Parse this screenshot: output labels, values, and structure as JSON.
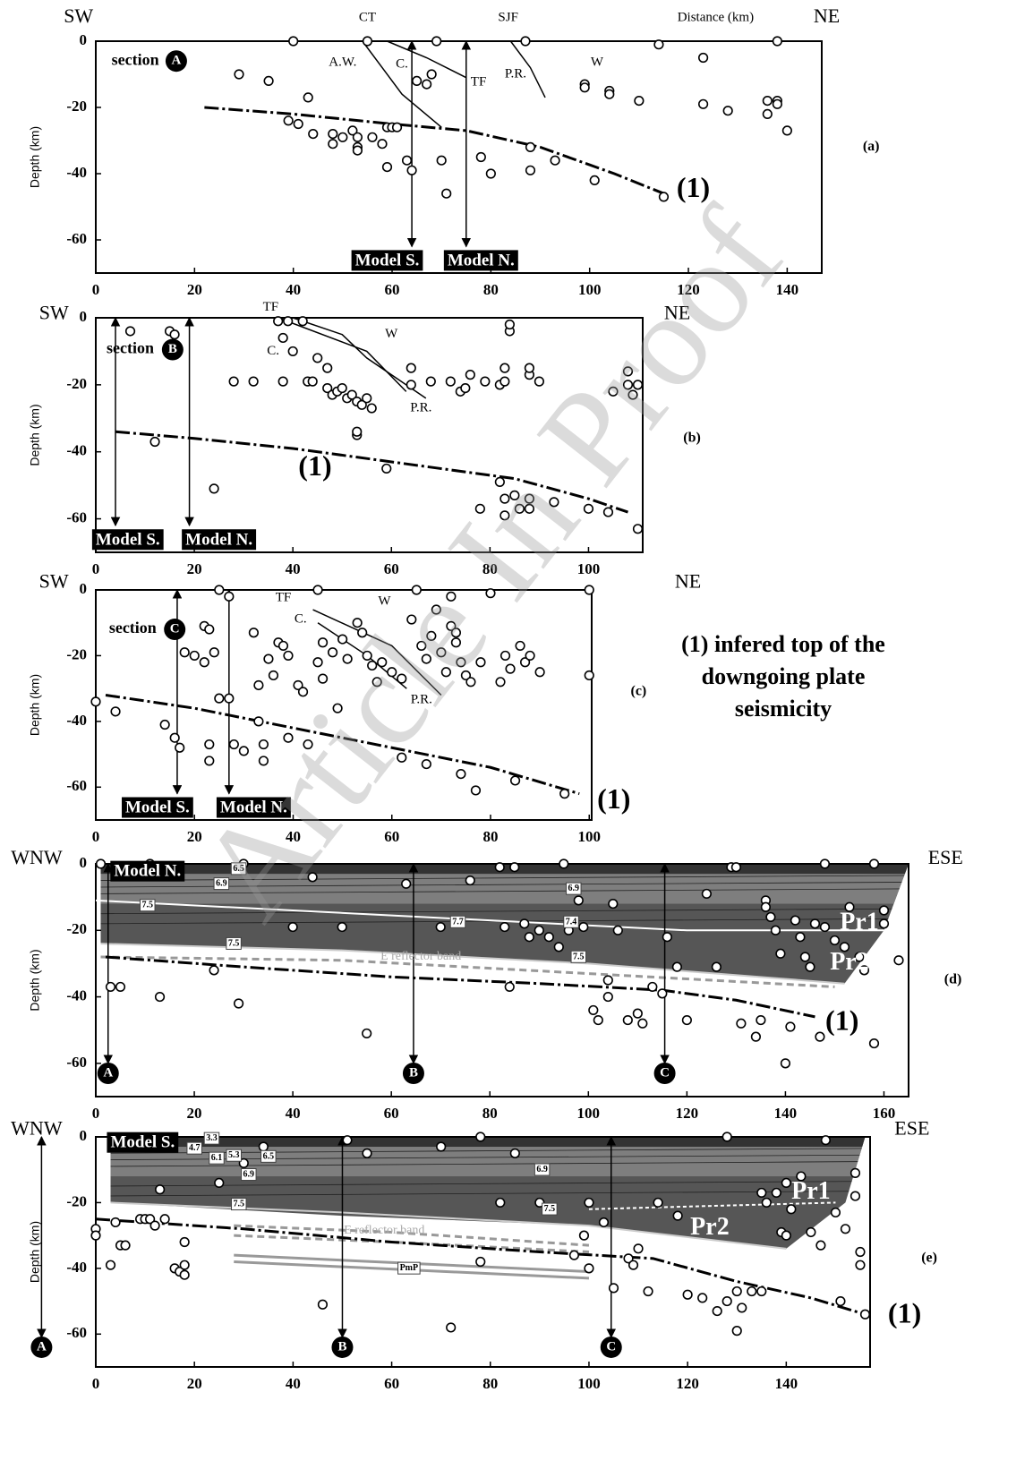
{
  "watermark": "Article In Proof",
  "note": [
    "(1) infered top of the",
    "downgoing plate",
    "seismicity"
  ],
  "chart_data": [
    {
      "type": "scatter",
      "ylabel": "Depth (km)",
      "xlim": [
        0,
        147
      ],
      "ylim": [
        -70,
        0
      ],
      "xticks": [
        0,
        20,
        40,
        60,
        80,
        100,
        120,
        140
      ],
      "yticks": [
        0,
        -20,
        -40,
        -60
      ],
      "x": [
        40,
        55,
        69,
        87,
        114,
        138,
        29,
        35,
        43,
        65,
        67,
        68,
        99,
        99,
        104,
        104,
        110,
        123,
        123,
        128,
        136,
        136,
        138,
        138,
        140,
        39,
        41,
        44,
        48,
        48,
        50,
        52,
        53,
        53,
        53,
        56,
        58,
        59,
        60,
        61,
        59,
        63,
        64,
        70,
        71,
        78,
        80,
        88,
        88,
        93,
        101,
        115
      ],
      "y": [
        0,
        0,
        0,
        0,
        -1,
        0,
        -10,
        -12,
        -17,
        -12,
        -13,
        -10,
        -13,
        -14,
        -15,
        -16,
        -18,
        -5,
        -19,
        -21,
        -18,
        -22,
        -18,
        -19,
        -27,
        -24,
        -25,
        -28,
        -28,
        -31,
        -29,
        -27,
        -29,
        -32,
        -33,
        -29,
        -31,
        -26,
        -26,
        -26,
        -38,
        -36,
        -39,
        -36,
        -46,
        -35,
        -40,
        -32,
        -39,
        -36,
        -42,
        -47
      ],
      "plate_line": {
        "x": [
          22,
          40,
          60,
          75,
          90,
          105,
          115
        ],
        "y": [
          -20,
          -22,
          -25,
          -27,
          -32,
          -40,
          -46
        ]
      },
      "annotations": [
        "SW",
        "NE",
        "CT",
        "SJF",
        "Distance (km)",
        "A.W.",
        "C.",
        "TF",
        "P.R.",
        "W",
        "section",
        "A",
        "Model S.",
        "Model N.",
        "(1)",
        "(a)"
      ]
    },
    {
      "type": "scatter",
      "ylabel": "Depth (km)",
      "xlim": [
        0,
        111
      ],
      "ylim": [
        -70,
        0
      ],
      "xticks": [
        0,
        20,
        40,
        60,
        80,
        100
      ],
      "yticks": [
        0,
        -20,
        -40,
        -60
      ],
      "x": [
        7,
        15,
        16,
        12,
        24,
        28,
        32,
        37,
        39,
        42,
        38,
        40,
        45,
        47,
        38,
        43,
        44,
        47,
        48,
        49,
        50,
        51,
        52,
        53,
        54,
        55,
        56,
        53,
        53,
        59,
        64,
        64,
        68,
        72,
        74,
        75,
        76,
        79,
        82,
        83,
        83,
        84,
        84,
        88,
        88,
        90,
        82,
        83,
        85,
        86,
        88,
        88,
        93,
        100,
        104,
        105,
        108,
        108,
        109,
        110,
        110,
        78,
        83
      ],
      "y": [
        -4,
        -4,
        -5,
        -37,
        -51,
        -19,
        -19,
        -1,
        -1,
        -1,
        -6,
        -10,
        -12,
        -15,
        -19,
        -19,
        -19,
        -21,
        -23,
        -22,
        -21,
        -24,
        -23,
        -25,
        -26,
        -24,
        -27,
        -35,
        -34,
        -45,
        -20,
        -15,
        -19,
        -19,
        -22,
        -21,
        -17,
        -19,
        -20,
        -15,
        -19,
        -4,
        -2,
        -17,
        -15,
        -19,
        -49,
        -54,
        -53,
        -57,
        -54,
        -57,
        -55,
        -57,
        -58,
        -22,
        -16,
        -20,
        -23,
        -20,
        -63,
        -57,
        -59
      ],
      "plate_line": {
        "x": [
          4,
          20,
          40,
          55,
          70,
          85,
          100,
          108
        ],
        "y": [
          -34,
          -36,
          -39,
          -42,
          -45,
          -48,
          -54,
          -58
        ]
      },
      "annotations": [
        "SW",
        "NE",
        "TF",
        "W",
        "C.",
        "P.R.",
        "section",
        "B",
        "(1)",
        "(b)",
        "Model S.",
        "Model N."
      ]
    },
    {
      "type": "scatter",
      "ylabel": "Depth (km)",
      "xlim": [
        0,
        100.5
      ],
      "ylim": [
        -70,
        0
      ],
      "xticks": [
        0,
        20,
        40,
        60,
        80,
        100
      ],
      "yticks": [
        0,
        -20,
        -40,
        -60
      ],
      "x": [
        0,
        4,
        14,
        16,
        17,
        18,
        20,
        22,
        23,
        22,
        24,
        25,
        23,
        23,
        25,
        27,
        27,
        28,
        30,
        32,
        33,
        34,
        34,
        33,
        35,
        36,
        37,
        38,
        39,
        39,
        41,
        42,
        43,
        45,
        45,
        46,
        46,
        48,
        49,
        50,
        51,
        53,
        54,
        55,
        56,
        57,
        58,
        60,
        62,
        62,
        64,
        66,
        67,
        67,
        68,
        69,
        70,
        71,
        72,
        73,
        73,
        74,
        74,
        75,
        76,
        77,
        78,
        80,
        82,
        83,
        84,
        85,
        86,
        87,
        88,
        90,
        95,
        100,
        100,
        72,
        65
      ],
      "y": [
        -34,
        -37,
        -41,
        -45,
        -48,
        -19,
        -20,
        -11,
        -12,
        -22,
        -19,
        -33,
        -47,
        -52,
        0,
        -2,
        -33,
        -47,
        -49,
        -13,
        -29,
        -47,
        -52,
        -40,
        -21,
        -26,
        -16,
        -17,
        -20,
        -45,
        -29,
        -31,
        -47,
        -22,
        0,
        -16,
        -27,
        -19,
        -36,
        -15,
        -21,
        -10,
        -13,
        -20,
        -23,
        -28,
        -22,
        -25,
        -51,
        -27,
        -9,
        -17,
        -53,
        -21,
        -14,
        -6,
        -19,
        -25,
        -11,
        -13,
        -16,
        -22,
        -56,
        -26,
        -28,
        -61,
        -22,
        -1,
        -28,
        -20,
        -24,
        -58,
        -17,
        -22,
        -20,
        -25,
        -62,
        0,
        -26,
        -2,
        0
      ],
      "plate_line": {
        "x": [
          2,
          20,
          40,
          60,
          80,
          98
        ],
        "y": [
          -32,
          -36,
          -42,
          -48,
          -54,
          -62
        ]
      },
      "annotations": [
        "SW",
        "NE",
        "TF",
        "W",
        "C.",
        "P.R.",
        "section",
        "C",
        "Model S.",
        "Model N.",
        "(1)",
        "(c)"
      ]
    },
    {
      "type": "scatter",
      "ylabel": "Depth (km)",
      "xlim": [
        0,
        165
      ],
      "ylim": [
        -70,
        0
      ],
      "xticks": [
        0,
        20,
        40,
        60,
        80,
        100,
        120,
        140,
        160
      ],
      "yticks": [
        0,
        -20,
        -40,
        -60
      ],
      "x": [
        5,
        3,
        13,
        24,
        29,
        40,
        44,
        50,
        55,
        63,
        70,
        76,
        82,
        83,
        84,
        85,
        87,
        88,
        90,
        92,
        94,
        96,
        98,
        99,
        101,
        102,
        104,
        104,
        105,
        106,
        108,
        110,
        111,
        113,
        115,
        116,
        118,
        120,
        124,
        126,
        129,
        131,
        135,
        134,
        136,
        136,
        137,
        138,
        139,
        140,
        141,
        142,
        143,
        144,
        145,
        146,
        147,
        148,
        150,
        152,
        153,
        155,
        156,
        158,
        160,
        163,
        160,
        158,
        148,
        130,
        95,
        11,
        30,
        1
      ],
      "y": [
        -37,
        -37,
        -40,
        -32,
        -42,
        -19,
        -4,
        -19,
        -51,
        -6,
        -19,
        -5,
        -1,
        -19,
        -37,
        -1,
        -18,
        -22,
        -20,
        -22,
        -25,
        -20,
        -11,
        -19,
        -44,
        -47,
        -35,
        -40,
        -12,
        -20,
        -47,
        -45,
        -48,
        -37,
        -39,
        -22,
        -31,
        -47,
        -9,
        -31,
        -1,
        -48,
        -47,
        -52,
        -11,
        -13,
        -16,
        -20,
        -27,
        -60,
        -49,
        -17,
        -22,
        -28,
        -31,
        -18,
        -52,
        -19,
        -23,
        -25,
        -13,
        -28,
        -32,
        -54,
        -18,
        -29,
        -14,
        0,
        0,
        -1,
        0,
        0,
        0,
        0
      ],
      "plate_line": {
        "x": [
          2,
          30,
          60,
          90,
          115,
          130,
          146
        ],
        "y": [
          -28,
          -31,
          -34,
          -36,
          -38,
          -41,
          -46
        ]
      },
      "annotations": [
        "WNW",
        "ESE",
        "Model N.",
        "6.5",
        "6.9",
        "7.5",
        "7.7",
        "7.4",
        "6.9",
        "7.5",
        "7.5",
        "E reflector band",
        "Pr1",
        "Pr2",
        "A",
        "B",
        "C",
        "(1)",
        "(d)"
      ]
    },
    {
      "type": "scatter",
      "ylabel": "Depth (km)",
      "xlim": [
        0,
        157
      ],
      "ylim": [
        -70,
        0
      ],
      "xticks": [
        0,
        20,
        40,
        60,
        80,
        100,
        120,
        140
      ],
      "yticks": [
        0,
        -20,
        -40,
        -60
      ],
      "x": [
        0,
        0,
        3,
        4,
        5,
        6,
        9,
        10,
        11,
        12,
        13,
        14,
        16,
        17,
        18,
        18,
        18,
        25,
        30,
        34,
        46,
        51,
        55,
        70,
        72,
        78,
        78,
        82,
        85,
        90,
        97,
        99,
        100,
        100,
        103,
        105,
        108,
        109,
        110,
        112,
        114,
        118,
        120,
        123,
        126,
        128,
        130,
        130,
        131,
        133,
        135,
        136,
        138,
        139,
        140,
        141,
        143,
        145,
        147,
        150,
        151,
        152,
        154,
        155,
        155,
        156,
        154,
        148,
        128,
        140,
        135
      ],
      "y": [
        -28,
        -30,
        -39,
        -26,
        -33,
        -33,
        -25,
        -25,
        -25,
        -27,
        -16,
        -25,
        -40,
        -41,
        -39,
        -42,
        -32,
        -14,
        -8,
        -3,
        -51,
        -1,
        -5,
        -3,
        -58,
        0,
        -38,
        -20,
        -5,
        -20,
        -36,
        -30,
        -20,
        -40,
        -26,
        -46,
        -37,
        -39,
        -34,
        -47,
        -20,
        -24,
        -48,
        -49,
        -53,
        -50,
        -47,
        -59,
        -52,
        -47,
        -47,
        -20,
        -17,
        -29,
        -30,
        -22,
        -12,
        -29,
        -33,
        -23,
        -50,
        -28,
        -18,
        -35,
        -39,
        -54,
        -11,
        -1,
        0,
        -14,
        -17
      ],
      "plate_line": {
        "x": [
          0,
          30,
          60,
          90,
          113,
          130,
          145,
          156
        ],
        "y": [
          -25,
          -28,
          -32,
          -35,
          -37,
          -44,
          -49,
          -54
        ]
      },
      "annotations": [
        "WNW",
        "ESE",
        "Model S.",
        "3.3",
        "4.7",
        "6.1",
        "5.3",
        "6.5",
        "6.9",
        "6.9",
        "7.5",
        "7.5",
        "E reflector band",
        "PmP",
        "Pr1",
        "Pr2",
        "A",
        "B",
        "C",
        "(1)",
        "(e)"
      ]
    }
  ]
}
